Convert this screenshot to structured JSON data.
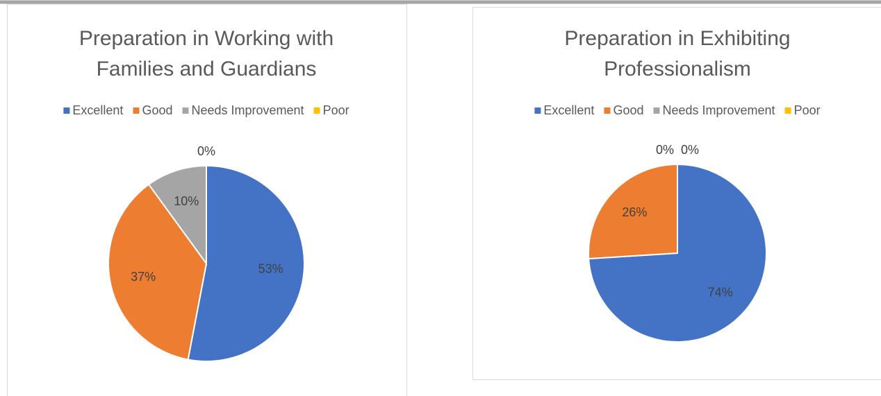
{
  "chart_data": [
    {
      "type": "pie",
      "title": [
        "Preparation in Working with",
        "Families and Guardians"
      ],
      "categories": [
        "Excellent",
        "Good",
        "Needs Improvement",
        "Poor"
      ],
      "values": [
        53,
        37,
        10,
        0
      ],
      "value_labels": [
        "53%",
        "37%",
        "10%",
        "0%"
      ],
      "colors": [
        "#4472c4",
        "#ed7d31",
        "#a5a5a5",
        "#ffc000"
      ],
      "legend": "top"
    },
    {
      "type": "pie",
      "title": [
        "Preparation in Exhibiting",
        "Professionalism"
      ],
      "categories": [
        "Excellent",
        "Good",
        "Needs Improvement",
        "Poor"
      ],
      "values": [
        74,
        26,
        0,
        0
      ],
      "value_labels": [
        "74%",
        "26%",
        "0%",
        "0%"
      ],
      "colors": [
        "#4472c4",
        "#ed7d31",
        "#a5a5a5",
        "#ffc000"
      ],
      "legend": "top"
    }
  ]
}
